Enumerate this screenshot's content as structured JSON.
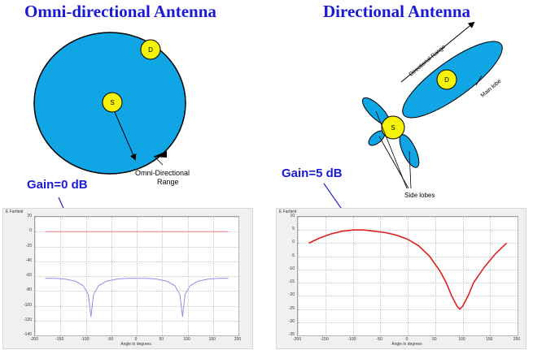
{
  "titles": {
    "left": "Omni-directional Antenna",
    "right": "Directional Antenna"
  },
  "omni": {
    "node_s": "S",
    "node_d": "D",
    "range_label_line1": "Omni-Directional",
    "range_label_line2": "Range",
    "gain_label": "Gain=0 dB",
    "fill_color": "#10a6e6"
  },
  "directional": {
    "node_s": "S",
    "node_d": "D",
    "range_label": "Directional Range",
    "main_lobe_label": "Main lobe",
    "side_lobes_label": "Side lobes",
    "gain_label": "Gain=5 dB",
    "fill_color": "#10a6e6"
  },
  "chart_data": [
    {
      "type": "line",
      "title": "E Farfield",
      "xlabel": "Angle in degrees",
      "ylabel": "",
      "xlim": [
        -200,
        200
      ],
      "ylim": [
        -140,
        20
      ],
      "x_ticks": [
        -200,
        -150,
        -100,
        -50,
        0,
        50,
        100,
        150,
        200
      ],
      "y_ticks": [
        20,
        0,
        -20,
        -40,
        -60,
        -80,
        -100,
        -120,
        -140
      ],
      "series": [
        {
          "color": "#f08080",
          "x": [
            -180,
            -120,
            -60,
            0,
            60,
            120,
            180
          ],
          "y": [
            0,
            0,
            0,
            0,
            0,
            0,
            0
          ]
        },
        {
          "color": "#8f8ff0",
          "x": [
            -180,
            -160,
            -140,
            -120,
            -105,
            -95,
            -90,
            -85,
            -75,
            -60,
            -40,
            -20,
            0,
            20,
            40,
            60,
            75,
            85,
            90,
            95,
            105,
            120,
            140,
            160,
            180
          ],
          "y": [
            -63,
            -63,
            -64,
            -67,
            -73,
            -85,
            -115,
            -85,
            -73,
            -67,
            -64,
            -63,
            -63,
            -63,
            -64,
            -67,
            -73,
            -85,
            -115,
            -85,
            -73,
            -67,
            -64,
            -63,
            -63
          ]
        }
      ]
    },
    {
      "type": "line",
      "title": "E Farfield",
      "xlabel": "Angle in degrees",
      "ylabel": "",
      "xlim": [
        -200,
        200
      ],
      "ylim": [
        -35,
        10
      ],
      "x_ticks": [
        -200,
        -150,
        -100,
        -50,
        0,
        50,
        100,
        150,
        200
      ],
      "y_ticks": [
        10,
        5,
        0,
        -5,
        -10,
        -15,
        -20,
        -25,
        -30,
        -35
      ],
      "series": [
        {
          "color": "#e02020",
          "x": [
            -180,
            -160,
            -140,
            -120,
            -100,
            -80,
            -60,
            -40,
            -20,
            0,
            20,
            40,
            60,
            70,
            80,
            90,
            95,
            100,
            110,
            120,
            140,
            160,
            180
          ],
          "y": [
            0,
            2,
            3.5,
            4.5,
            5,
            5,
            4.5,
            4,
            3,
            1.5,
            -1,
            -5,
            -11,
            -15,
            -20,
            -24,
            -25,
            -24,
            -20,
            -15,
            -9,
            -4,
            0
          ]
        }
      ]
    }
  ]
}
